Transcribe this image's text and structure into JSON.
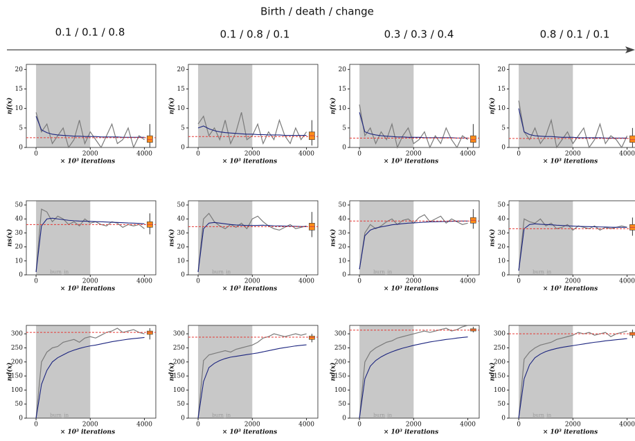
{
  "title": "Birth / death / change",
  "columns": [
    "0.1 / 0.1 / 0.8",
    "0.1 / 0.8 / 0.1",
    "0.3  / 0.3 / 0.4",
    "0.8 / 0.1 / 0.1"
  ],
  "chart_data": [
    {
      "type": "trace",
      "ylabel": "nf(x)",
      "xlabel": "× 10³ iterations",
      "xlim": [
        -360,
        4420
      ],
      "ylim": [
        0,
        21.3
      ],
      "xticks": [
        0,
        2000,
        4000
      ],
      "yticks": [
        0,
        5,
        10,
        15,
        20
      ],
      "shade": [
        0,
        2000
      ],
      "reference": 2.5,
      "box_x": 4200,
      "box": [
        0,
        1.3,
        2,
        3,
        6
      ],
      "x": [
        0,
        200,
        400,
        600,
        800,
        1000,
        1200,
        1400,
        1600,
        1800,
        2000,
        2200,
        2400,
        2600,
        2800,
        3000,
        3200,
        3400,
        3600,
        3800,
        4000
      ],
      "trace": [
        9,
        4,
        6,
        1,
        3,
        5,
        0,
        2,
        7,
        1,
        4,
        2,
        0,
        3,
        6,
        1,
        2,
        5,
        0,
        3,
        2
      ],
      "mean": [
        8,
        4.5,
        3.8,
        3.4,
        3.2,
        3.1,
        3,
        2.9,
        2.9,
        2.8,
        2.8,
        2.8,
        2.7,
        2.7,
        2.7,
        2.7,
        2.6,
        2.6,
        2.6,
        2.6,
        2.6
      ]
    },
    {
      "type": "trace",
      "ylabel": "nf(x)",
      "xlabel": "× 10³ iterations",
      "xlim": [
        -360,
        4420
      ],
      "ylim": [
        0,
        21.3
      ],
      "xticks": [
        0,
        2000,
        4000
      ],
      "yticks": [
        0,
        5,
        10,
        15,
        20
      ],
      "shade": [
        0,
        2000
      ],
      "reference": 2.8,
      "box_x": 4200,
      "box": [
        0.5,
        2,
        3,
        4,
        7
      ],
      "x": [
        0,
        200,
        400,
        600,
        800,
        1000,
        1200,
        1400,
        1600,
        1800,
        2000,
        2200,
        2400,
        2600,
        2800,
        3000,
        3200,
        3400,
        3600,
        3800,
        4000
      ],
      "trace": [
        6,
        8,
        3,
        5,
        2,
        7,
        1,
        4,
        9,
        2,
        3,
        6,
        1,
        4,
        2,
        7,
        3,
        1,
        5,
        2,
        4
      ],
      "mean": [
        5,
        5.5,
        4.8,
        4.3,
        4,
        3.8,
        3.7,
        3.6,
        3.5,
        3.4,
        3.4,
        3.3,
        3.3,
        3.2,
        3.2,
        3.2,
        3.1,
        3.1,
        3.1,
        3.1,
        3.1
      ]
    },
    {
      "type": "trace",
      "ylabel": "nf(x)",
      "xlabel": "× 10³ iterations",
      "xlim": [
        -360,
        4420
      ],
      "ylim": [
        0,
        21.3
      ],
      "xticks": [
        0,
        2000,
        4000
      ],
      "yticks": [
        0,
        5,
        10,
        15,
        20
      ],
      "shade": [
        0,
        2000
      ],
      "reference": 2.4,
      "box_x": 4200,
      "box": [
        0,
        1.3,
        2,
        3,
        6
      ],
      "x": [
        0,
        200,
        400,
        600,
        800,
        1000,
        1200,
        1400,
        1600,
        1800,
        2000,
        2200,
        2400,
        2600,
        2800,
        3000,
        3200,
        3400,
        3600,
        3800,
        4000
      ],
      "trace": [
        11,
        3,
        5,
        1,
        4,
        2,
        6,
        0,
        3,
        5,
        1,
        2,
        4,
        0,
        3,
        1,
        5,
        2,
        0,
        3,
        2
      ],
      "mean": [
        9,
        4,
        3.5,
        3.2,
        3,
        2.9,
        2.8,
        2.7,
        2.7,
        2.6,
        2.6,
        2.6,
        2.5,
        2.5,
        2.5,
        2.5,
        2.5,
        2.5,
        2.4,
        2.4,
        2.4
      ]
    },
    {
      "type": "trace",
      "ylabel": "nf(x)",
      "xlabel": "× 10³ iterations",
      "xlim": [
        -360,
        4420
      ],
      "ylim": [
        0,
        21.3
      ],
      "xticks": [
        0,
        2000,
        4000
      ],
      "yticks": [
        0,
        5,
        10,
        15,
        20
      ],
      "shade": [
        0,
        2000
      ],
      "reference": 2.3,
      "box_x": 4200,
      "box": [
        0,
        1.3,
        2,
        3,
        5
      ],
      "x": [
        0,
        200,
        400,
        600,
        800,
        1000,
        1200,
        1400,
        1600,
        1800,
        2000,
        2200,
        2400,
        2600,
        2800,
        3000,
        3200,
        3400,
        3600,
        3800,
        4000
      ],
      "trace": [
        12,
        4,
        2,
        5,
        1,
        3,
        7,
        0,
        2,
        4,
        1,
        3,
        5,
        0,
        2,
        6,
        1,
        3,
        2,
        0,
        3
      ],
      "mean": [
        10,
        4,
        3.3,
        3,
        2.9,
        2.8,
        2.8,
        2.7,
        2.6,
        2.6,
        2.6,
        2.5,
        2.5,
        2.5,
        2.5,
        2.5,
        2.4,
        2.4,
        2.4,
        2.4,
        2.4
      ]
    },
    {
      "type": "trace",
      "ylabel": "ns(x)",
      "xlabel": "× 10³ iterations",
      "annotation": "burn_in",
      "xlim": [
        -360,
        4420
      ],
      "ylim": [
        0,
        53
      ],
      "xticks": [
        0,
        2000,
        4000
      ],
      "yticks": [
        0,
        10,
        20,
        30,
        40,
        50
      ],
      "shade": [
        0,
        2000
      ],
      "reference": 36,
      "box_x": 4200,
      "box": [
        29,
        34,
        36,
        38,
        44
      ],
      "x": [
        0,
        200,
        400,
        600,
        800,
        1000,
        1200,
        1400,
        1600,
        1800,
        2000,
        2200,
        2400,
        2600,
        2800,
        3000,
        3200,
        3400,
        3600,
        3800,
        4000
      ],
      "trace": [
        2,
        47,
        45,
        38,
        42,
        40,
        36,
        38,
        35,
        40,
        37,
        38,
        36,
        35,
        38,
        37,
        34,
        36,
        35,
        36,
        33
      ],
      "mean": [
        2,
        35,
        40,
        40.5,
        40,
        39.5,
        39,
        38.7,
        38.5,
        38.4,
        38.3,
        38.1,
        38,
        37.8,
        37.6,
        37.5,
        37.3,
        37.1,
        37,
        36.8,
        36.5
      ]
    },
    {
      "type": "trace",
      "ylabel": "ns(x)",
      "xlabel": "× 10³ iterations",
      "annotation": "burn_in",
      "xlim": [
        -360,
        4420
      ],
      "ylim": [
        0,
        53
      ],
      "xticks": [
        0,
        2000,
        4000
      ],
      "yticks": [
        0,
        10,
        20,
        30,
        40,
        50
      ],
      "shade": [
        0,
        2000
      ],
      "reference": 34.5,
      "box_x": 4200,
      "box": [
        27,
        32,
        34.5,
        37,
        45
      ],
      "x": [
        0,
        200,
        400,
        600,
        800,
        1000,
        1200,
        1400,
        1600,
        1800,
        2000,
        2200,
        2400,
        2600,
        2800,
        3000,
        3200,
        3400,
        3600,
        3800,
        4000
      ],
      "trace": [
        2,
        40,
        44,
        38,
        35,
        33,
        36,
        34,
        37,
        33,
        40,
        42,
        38,
        35,
        33,
        32,
        34,
        36,
        33,
        34,
        35
      ],
      "mean": [
        2,
        33,
        37,
        37.5,
        37,
        36.5,
        36,
        35.7,
        35.5,
        35.3,
        35.3,
        35.4,
        35.5,
        35.3,
        35.1,
        35,
        34.9,
        34.8,
        34.7,
        34.6,
        34.5
      ]
    },
    {
      "type": "trace",
      "ylabel": "ns(x)",
      "xlabel": "× 10³ iterations",
      "annotation": "burn_in",
      "xlim": [
        -360,
        4420
      ],
      "ylim": [
        0,
        53
      ],
      "xticks": [
        0,
        2000,
        4000
      ],
      "yticks": [
        0,
        10,
        20,
        30,
        40,
        50
      ],
      "shade": [
        0,
        2000
      ],
      "reference": 38.5,
      "box_x": 4200,
      "box": [
        33,
        37,
        39,
        41,
        47
      ],
      "x": [
        0,
        200,
        400,
        600,
        800,
        1000,
        1200,
        1400,
        1600,
        1800,
        2000,
        2200,
        2400,
        2600,
        2800,
        3000,
        3200,
        3400,
        3600,
        3800,
        4000
      ],
      "trace": [
        4,
        30,
        36,
        33,
        35,
        38,
        40,
        36,
        39,
        40,
        37,
        41,
        43,
        38,
        40,
        42,
        37,
        40,
        38,
        36,
        37
      ],
      "mean": [
        4,
        28,
        32,
        33.5,
        34.3,
        35,
        35.8,
        36.2,
        36.6,
        37,
        37.2,
        37.4,
        37.7,
        37.9,
        38,
        38.1,
        38.2,
        38.3,
        38.4,
        38.5,
        38.5
      ]
    },
    {
      "type": "trace",
      "ylabel": "ns(x)",
      "xlabel": "× 10³ iterations",
      "annotation": "burn_in",
      "xlim": [
        -360,
        4420
      ],
      "ylim": [
        0,
        53
      ],
      "xticks": [
        0,
        2000,
        4000
      ],
      "yticks": [
        0,
        10,
        20,
        30,
        40,
        50
      ],
      "shade": [
        0,
        2000
      ],
      "reference": 33,
      "box_x": 4200,
      "box": [
        28,
        32,
        34,
        36,
        41
      ],
      "x": [
        0,
        200,
        400,
        600,
        800,
        1000,
        1200,
        1400,
        1600,
        1800,
        2000,
        2200,
        2400,
        2600,
        2800,
        3000,
        3200,
        3400,
        3600,
        3800,
        4000
      ],
      "trace": [
        3,
        40,
        38,
        37,
        40,
        35,
        37,
        33,
        34,
        36,
        32,
        35,
        34,
        33,
        35,
        32,
        34,
        33,
        34,
        35,
        34
      ],
      "mean": [
        3,
        33,
        36,
        36.5,
        36.2,
        36,
        35.8,
        35.5,
        35.3,
        35.1,
        34.9,
        34.7,
        34.6,
        34.5,
        34.4,
        34.3,
        34.2,
        34.1,
        34,
        34,
        34
      ]
    },
    {
      "type": "trace",
      "ylabel": "nd(x)",
      "xlabel": "× 10³ iterations",
      "annotation": "burn_in",
      "xlim": [
        -360,
        4420
      ],
      "ylim": [
        0,
        330
      ],
      "xticks": [
        0,
        2000,
        4000
      ],
      "yticks": [
        0,
        50,
        100,
        150,
        200,
        250,
        300
      ],
      "shade": [
        0,
        2000
      ],
      "reference": 305,
      "box_x": 4200,
      "box": [
        280,
        298,
        305,
        310,
        320
      ],
      "x": [
        0,
        200,
        400,
        600,
        800,
        1000,
        1200,
        1400,
        1600,
        1800,
        2000,
        2200,
        2400,
        2600,
        2800,
        3000,
        3200,
        3400,
        3600,
        3800,
        4000
      ],
      "trace": [
        0,
        200,
        235,
        250,
        255,
        270,
        275,
        280,
        270,
        285,
        290,
        285,
        295,
        305,
        310,
        320,
        305,
        310,
        315,
        305,
        300
      ],
      "mean": [
        0,
        120,
        170,
        200,
        215,
        225,
        235,
        242,
        248,
        253,
        257,
        260,
        264,
        268,
        272,
        275,
        278,
        281,
        283,
        285,
        287
      ]
    },
    {
      "type": "trace",
      "ylabel": "nd(x)",
      "xlabel": "× 10³ iterations",
      "annotation": "burn_in",
      "xlim": [
        -360,
        4420
      ],
      "ylim": [
        0,
        330
      ],
      "xticks": [
        0,
        2000,
        4000
      ],
      "yticks": [
        0,
        50,
        100,
        150,
        200,
        250,
        300
      ],
      "shade": [
        0,
        2000
      ],
      "reference": 288,
      "box_x": 4200,
      "box": [
        270,
        280,
        287,
        292,
        300
      ],
      "x": [
        0,
        200,
        400,
        600,
        800,
        1000,
        1200,
        1400,
        1600,
        1800,
        2000,
        2200,
        2400,
        2600,
        2800,
        3000,
        3200,
        3400,
        3600,
        3800,
        4000
      ],
      "trace": [
        0,
        205,
        225,
        230,
        235,
        240,
        235,
        245,
        250,
        255,
        260,
        270,
        285,
        290,
        300,
        295,
        290,
        295,
        300,
        295,
        300
      ],
      "mean": [
        0,
        130,
        180,
        195,
        205,
        212,
        217,
        220,
        223,
        226,
        229,
        232,
        236,
        240,
        244,
        248,
        251,
        254,
        257,
        259,
        261
      ]
    },
    {
      "type": "trace",
      "ylabel": "nd(x)",
      "xlabel": "× 10³ iterations",
      "annotation": "burn_in",
      "xlim": [
        -360,
        4420
      ],
      "ylim": [
        0,
        330
      ],
      "xticks": [
        0,
        2000,
        4000
      ],
      "yticks": [
        0,
        50,
        100,
        150,
        200,
        250,
        300
      ],
      "shade": [
        0,
        2000
      ],
      "reference": 313,
      "box_x": 4200,
      "box": [
        305,
        310,
        314,
        318,
        325
      ],
      "x": [
        0,
        200,
        400,
        600,
        800,
        1000,
        1200,
        1400,
        1600,
        1800,
        2000,
        2200,
        2400,
        2600,
        2800,
        3000,
        3200,
        3400,
        3600,
        3800,
        4000
      ],
      "trace": [
        0,
        200,
        235,
        250,
        260,
        270,
        275,
        285,
        290,
        295,
        300,
        305,
        310,
        305,
        310,
        315,
        320,
        310,
        315,
        325,
        330
      ],
      "mean": [
        0,
        140,
        185,
        205,
        218,
        228,
        236,
        243,
        249,
        254,
        259,
        263,
        267,
        271,
        274,
        277,
        280,
        282,
        285,
        287,
        289
      ]
    },
    {
      "type": "trace",
      "ylabel": "nd(x)",
      "xlabel": "× 10³ iterations",
      "annotation": "burn_in",
      "xlim": [
        -360,
        4420
      ],
      "ylim": [
        0,
        330
      ],
      "xticks": [
        0,
        2000,
        4000
      ],
      "yticks": [
        0,
        50,
        100,
        150,
        200,
        250,
        300
      ],
      "shade": [
        0,
        2000
      ],
      "reference": 300,
      "box_x": 4200,
      "box": [
        285,
        295,
        300,
        305,
        315
      ],
      "x": [
        0,
        200,
        400,
        600,
        800,
        1000,
        1200,
        1400,
        1600,
        1800,
        2000,
        2200,
        2400,
        2600,
        2800,
        3000,
        3200,
        3400,
        3600,
        3800,
        4000
      ],
      "trace": [
        0,
        210,
        235,
        250,
        260,
        265,
        270,
        280,
        285,
        290,
        295,
        305,
        300,
        305,
        295,
        300,
        305,
        290,
        300,
        305,
        310
      ],
      "mean": [
        0,
        140,
        190,
        215,
        228,
        237,
        243,
        248,
        252,
        255,
        258,
        261,
        264,
        267,
        270,
        272,
        275,
        277,
        279,
        281,
        283
      ]
    }
  ]
}
